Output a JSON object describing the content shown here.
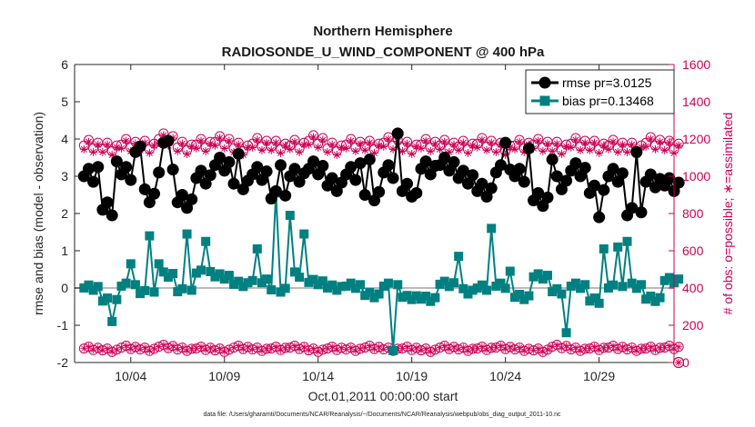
{
  "chart_data": {
    "type": "line",
    "title": "Northern Hemisphere",
    "subtitle": "RADIOSONDE_U_WIND_COMPONENT @ 400 hPa",
    "xlabel": "Oct.01,2011 00:00:00 start",
    "ylabel": "rmse and bias (model - observation)",
    "ylabel_right": "# of obs: o=possible; ∗=assimilated",
    "footer": "data file: /Users/gharamti/Documents/NCAR/Reanalysis/~/Documents/NCAR/Reanalysis/webpub/obs_diag_output_2011-10.nc",
    "xlim": [
      0.5,
      32.5
    ],
    "ylim": [
      -2,
      6
    ],
    "ylim_right": [
      0,
      1600
    ],
    "x_ticks": [
      3.5,
      8.5,
      13.5,
      18.5,
      23.5,
      28.5
    ],
    "x_tick_labels": [
      "10/04",
      "10/09",
      "10/14",
      "10/19",
      "10/24",
      "10/29"
    ],
    "y_ticks": [
      -2,
      -1,
      0,
      1,
      2,
      3,
      4,
      5,
      6
    ],
    "y_ticks_right": [
      0,
      200,
      400,
      600,
      800,
      1000,
      1200,
      1400,
      1600
    ],
    "zero_line": 0,
    "rmse_base": [
      3.0,
      2.1,
      3.05,
      2.45,
      3.1,
      2.3,
      2.95,
      3.3,
      2.8,
      3.05,
      2.4,
      3.0,
      3.2,
      2.75,
      3.05,
      2.5,
      3.1,
      2.6,
      3.2,
      3.3,
      2.95,
      2.6,
      3.1,
      3.0,
      2.35,
      2.8,
      3.15,
      2.55,
      3.0,
      1.95,
      2.85,
      2.75
    ],
    "rmse_peaks": {
      "3": 3.25,
      "7": 3.4,
      "11": 3.65,
      "12": 3.8,
      "17": 3.9,
      "18": 3.95,
      "33": 3.6,
      "42": 3.3,
      "59": 3.35,
      "61": 3.45,
      "67": 4.15,
      "71": 2.55,
      "90": 3.9,
      "95": 3.75,
      "100": 3.45,
      "110": 1.9,
      "118": 3.65
    },
    "bias_base": [
      0.0,
      -0.35,
      0.05,
      -0.15,
      0.35,
      -0.1,
      0.4,
      0.3,
      0.1,
      0.2,
      -0.05,
      0.35,
      0.15,
      0.0,
      0.05,
      -0.2,
      0.05,
      -0.25,
      -0.3,
      0.1,
      -0.1,
      0.0,
      0.05,
      -0.25,
      0.3,
      -0.1,
      0.05,
      -0.35,
      0.0,
      0.05,
      -0.3,
      0.2
    ],
    "bias_peaks": {
      "6": -0.9,
      "10": 0.65,
      "14": 1.4,
      "16": 0.65,
      "22": 1.45,
      "26": 1.25,
      "37": 1.05,
      "41": 2.55,
      "44": 1.95,
      "47": 1.45,
      "66": -1.68,
      "69": -0.2,
      "80": 0.85,
      "87": 1.6,
      "91": 0.45,
      "103": -1.2,
      "111": 1.05,
      "114": 1.1,
      "116": 1.25
    },
    "nposs_top": [
      1165,
      1150,
      1170,
      1160,
      1200,
      1155,
      1170,
      1185,
      1150,
      1175,
      1160,
      1165,
      1190,
      1150,
      1170,
      1160,
      1180,
      1155,
      1170,
      1165,
      1160,
      1175,
      1150,
      1165,
      1170,
      1155,
      1175,
      1160,
      1165,
      1150,
      1180,
      1160
    ],
    "nposs_bottom": [
      75,
      65,
      80,
      70,
      85,
      70,
      75,
      65,
      80,
      70,
      75,
      80,
      65,
      75,
      70,
      80,
      70,
      75,
      65,
      80,
      70,
      75,
      80,
      70,
      65,
      85,
      70,
      75,
      80,
      70,
      75,
      80
    ],
    "series": [
      {
        "name": "rmse",
        "legend": "rmse pr=3.0125",
        "color": "#000000",
        "marker": "circle",
        "axis": "left"
      },
      {
        "name": "bias",
        "legend": "bias pr=0.13468",
        "color": "#008080",
        "marker": "square",
        "axis": "left"
      },
      {
        "name": "nposs",
        "legend": "",
        "color": "#cc0055",
        "marker": "circle-open",
        "axis": "right"
      },
      {
        "name": "nused",
        "legend": "",
        "color": "#cc0055",
        "marker": "asterisk",
        "axis": "right"
      }
    ],
    "legend_position": "top-right",
    "n_per_day": 4
  },
  "colors": {
    "rmse": "#000000",
    "bias": "#008080",
    "counts": "#cc0055",
    "zero_line": "#bbbbbb",
    "axis": "#262626"
  }
}
